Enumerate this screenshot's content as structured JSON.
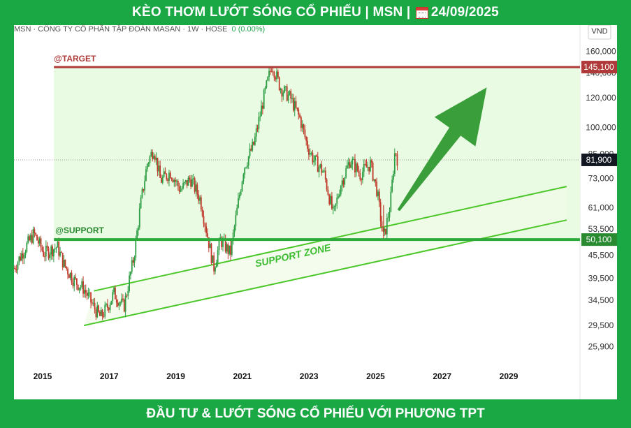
{
  "header": {
    "title_prefix": "KÈO THƠM LƯỚT SÓNG CỔ PHIẾU | MSN |",
    "date": "24/09/2025",
    "calendar_icon": "calendar-icon"
  },
  "footer": {
    "text": "ĐẦU TƯ & LƯỚT SÓNG CỔ PHIẾU VỚI PHƯƠNG TPT"
  },
  "chart_info": {
    "symbol_text": "MSN · CÔNG TY CỔ PHẦN TẬP ĐOÀN MASAN · 1W · HOSE",
    "change_text": "0 (0.00%)",
    "currency": "VND"
  },
  "colors": {
    "target": "#b03a3a",
    "support": "#2eaa3a",
    "up": "#2e9e44",
    "down": "#c0392b",
    "zone": "#e9fbe2",
    "arrow": "#3a9e3a",
    "channel": "#4cc72a"
  },
  "chart_data": {
    "type": "candlestick",
    "x_ticks": [
      "2015",
      "2017",
      "2019",
      "2021",
      "2023",
      "2025",
      "2027",
      "2029"
    ],
    "y_ticks": [
      25900,
      29500,
      34500,
      39500,
      45500,
      53500,
      61000,
      73000,
      85000,
      100000,
      120000,
      140000,
      160000
    ],
    "y_tick_labels": [
      "25,900",
      "29,500",
      "34,500",
      "39,500",
      "45,500",
      "53,500",
      "61,000",
      "73,000",
      "85,000",
      "100,000",
      "120,000",
      "140,000",
      "160,000"
    ],
    "y_scale": "log",
    "ylim": [
      23000,
      180000
    ],
    "xlim": [
      2014.2,
      2031.2
    ],
    "current_price": 81900,
    "current_price_label": "81,900",
    "target": {
      "label": "@TARGET",
      "value": 145100,
      "value_label": "145,100"
    },
    "support": {
      "label": "@SUPPORT",
      "value": 50100,
      "value_label": "50,100"
    },
    "zone_label": "SUPPORT ZONE",
    "price_path": [
      [
        2014.2,
        42000
      ],
      [
        2014.5,
        47000
      ],
      [
        2014.8,
        52000
      ],
      [
        2015.1,
        46000
      ],
      [
        2015.5,
        48000
      ],
      [
        2015.7,
        43000
      ],
      [
        2016.0,
        39000
      ],
      [
        2016.3,
        37000
      ],
      [
        2016.6,
        33000
      ],
      [
        2016.8,
        31000
      ],
      [
        2017.0,
        33000
      ],
      [
        2017.2,
        36000
      ],
      [
        2017.5,
        33000
      ],
      [
        2017.8,
        45000
      ],
      [
        2018.0,
        62000
      ],
      [
        2018.2,
        80000
      ],
      [
        2018.4,
        88000
      ],
      [
        2018.6,
        72000
      ],
      [
        2018.9,
        76000
      ],
      [
        2019.2,
        68000
      ],
      [
        2019.5,
        73000
      ],
      [
        2019.8,
        64000
      ],
      [
        2020.0,
        52000
      ],
      [
        2020.2,
        42000
      ],
      [
        2020.4,
        50000
      ],
      [
        2020.7,
        46000
      ],
      [
        2020.9,
        60000
      ],
      [
        2021.1,
        78000
      ],
      [
        2021.4,
        90000
      ],
      [
        2021.7,
        120000
      ],
      [
        2021.95,
        148000
      ],
      [
        2022.2,
        128000
      ],
      [
        2022.5,
        120000
      ],
      [
        2022.8,
        105000
      ],
      [
        2023.0,
        90000
      ],
      [
        2023.2,
        82000
      ],
      [
        2023.5,
        76000
      ],
      [
        2023.8,
        58000
      ],
      [
        2024.0,
        70000
      ],
      [
        2024.3,
        82000
      ],
      [
        2024.6,
        75000
      ],
      [
        2024.9,
        80000
      ],
      [
        2025.1,
        68000
      ],
      [
        2025.3,
        50100
      ],
      [
        2025.5,
        62000
      ],
      [
        2025.65,
        88000
      ],
      [
        2025.72,
        81900
      ]
    ]
  }
}
